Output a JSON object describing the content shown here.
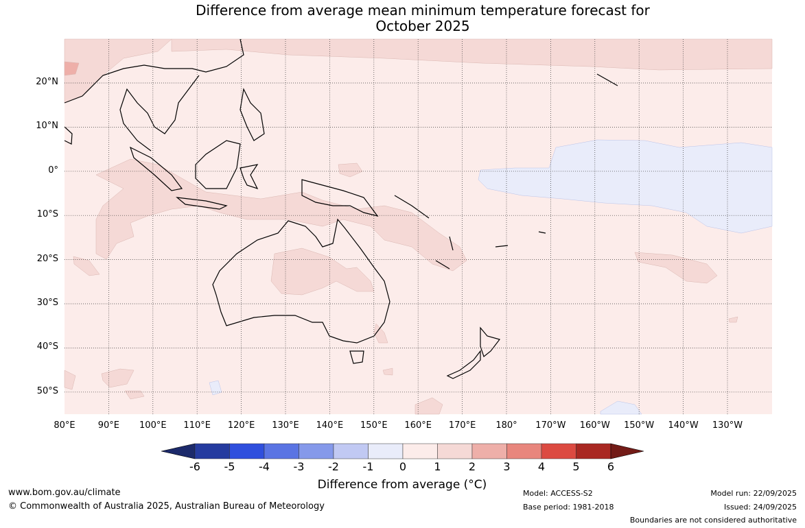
{
  "title_line1": "Difference from average mean minimum temperature forecast for",
  "title_line2": "October 2025",
  "lon_ticks": [
    "80°E",
    "90°E",
    "100°E",
    "110°E",
    "120°E",
    "130°E",
    "140°E",
    "150°E",
    "160°E",
    "170°E",
    "180°",
    "170°W",
    "160°W",
    "150°W",
    "140°W",
    "130°W"
  ],
  "lat_ticks": [
    "20°N",
    "10°N",
    "0°",
    "10°S",
    "20°S",
    "30°S",
    "40°S",
    "50°S"
  ],
  "colorbar": {
    "labels": [
      "-6",
      "-5",
      "-4",
      "-3",
      "-2",
      "-1",
      "0",
      "1",
      "2",
      "3",
      "4",
      "5",
      "6"
    ],
    "colors": [
      "#253b9f",
      "#2f4fdd",
      "#5a74e3",
      "#8599ea",
      "#c1c9f3",
      "#e9ecfa",
      "#fcecea",
      "#f5d9d6",
      "#eeafa9",
      "#e8867d",
      "#dc4a41",
      "#a92822"
    ],
    "under_color": "#1c2a6b",
    "over_color": "#731b17",
    "label": "Difference from average (°C)"
  },
  "footer": {
    "url": "www.bom.gov.au/climate",
    "copyright": "© Commonwealth of Australia 2025, Australian Bureau of Meteorology",
    "model": "Model: ACCESS-S2",
    "base_period": "Base period: 1981-2018",
    "model_run": "Model run: 22/09/2025",
    "issued": "Issued: 24/09/2025",
    "disclaimer": "Boundaries are not considered authoritative"
  }
}
